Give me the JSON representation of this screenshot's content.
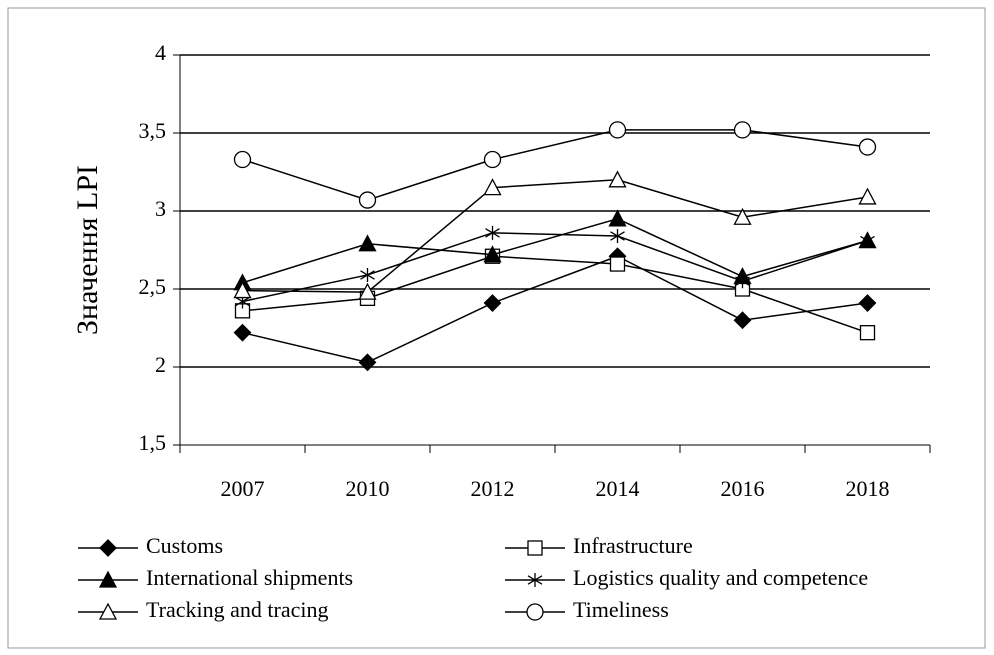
{
  "chart_data": {
    "type": "line",
    "y_label": "Значення LPI",
    "categories": [
      "2007",
      "2010",
      "2012",
      "2014",
      "2016",
      "2018"
    ],
    "ylim": [
      1.5,
      4
    ],
    "yticks": [
      {
        "value": 1.5,
        "label": "1,5"
      },
      2,
      {
        "value": 2.5,
        "label": "2,5"
      },
      3,
      {
        "value": 3.5,
        "label": "3,5"
      },
      4
    ],
    "grid": true,
    "legend": "bottom",
    "series": [
      {
        "name": "Customs",
        "color": "#000000",
        "marker": "diamond",
        "values": [
          2.22,
          2.03,
          2.41,
          2.71,
          2.3,
          2.41
        ]
      },
      {
        "name": "Infrastructure",
        "color": "#000000",
        "marker": "square-open",
        "values": [
          2.36,
          2.44,
          2.71,
          2.66,
          2.5,
          2.22
        ]
      },
      {
        "name": "International shipments",
        "color": "#000000",
        "marker": "triangle",
        "values": [
          2.54,
          2.79,
          2.72,
          2.95,
          2.58,
          2.81
        ]
      },
      {
        "name": "Logistics quality and competence",
        "color": "#000000",
        "marker": "star",
        "values": [
          2.42,
          2.59,
          2.86,
          2.84,
          2.55,
          2.81
        ]
      },
      {
        "name": "Tracking and tracing",
        "color": "#000000",
        "marker": "triangle-open",
        "values": [
          2.49,
          2.48,
          3.15,
          3.2,
          2.96,
          3.09
        ]
      },
      {
        "name": "Timeliness",
        "color": "#000000",
        "marker": "circle-open",
        "values": [
          3.33,
          3.07,
          3.33,
          3.52,
          3.52,
          3.41
        ]
      }
    ]
  }
}
